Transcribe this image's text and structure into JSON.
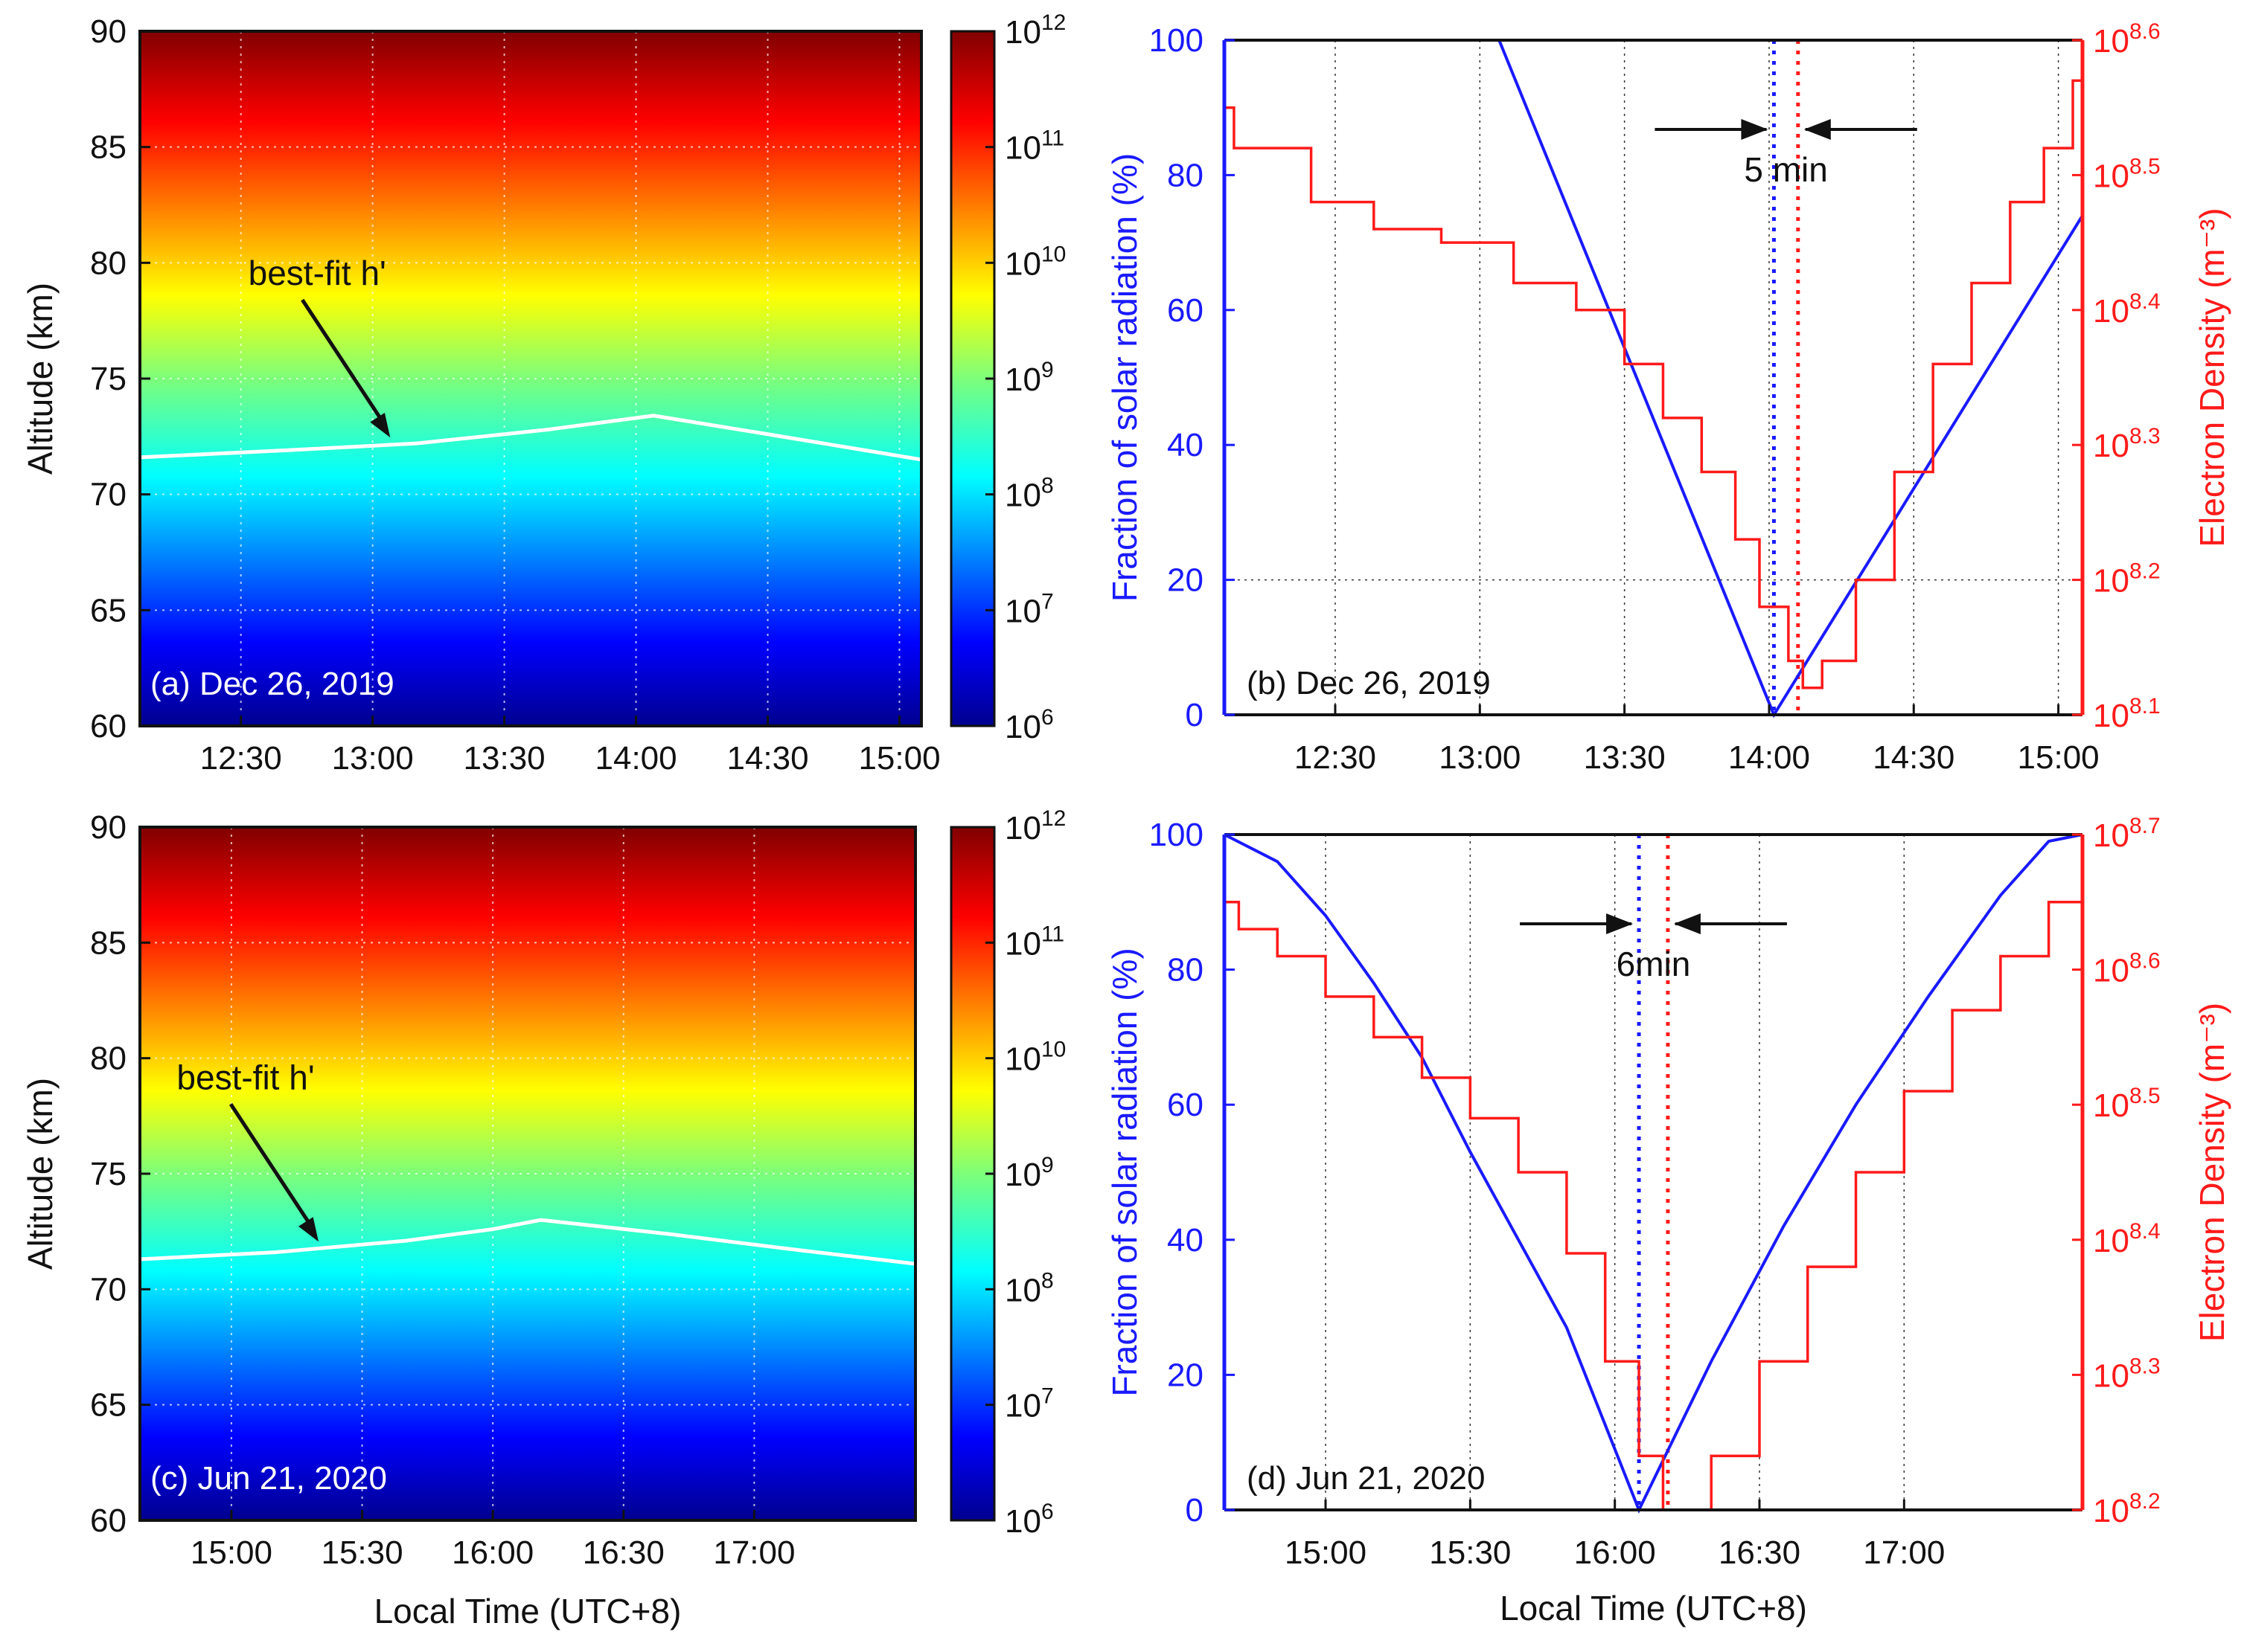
{
  "colors": {
    "frac_color": "#1a1aff",
    "density_color": "#ff1a1a",
    "frame_color": "#111111",
    "white_line": "#ffffff"
  },
  "chart_data": [
    {
      "id": "a",
      "type": "heatmap",
      "panel_label": "(a) Dec 26, 2019",
      "annotation": "best-fit h'",
      "xlabel": "",
      "ylabel": "Altitude (km)",
      "x_ticks": [
        "12:30",
        "13:00",
        "13:30",
        "14:00",
        "14:30",
        "15:00"
      ],
      "x_tick_minutes": [
        750,
        780,
        810,
        840,
        870,
        900
      ],
      "xlim_minutes": [
        727,
        905
      ],
      "ylim": [
        60,
        90
      ],
      "y_ticks": [
        "60",
        "65",
        "70",
        "75",
        "80",
        "85",
        "90"
      ],
      "y_tick_values": [
        60,
        65,
        70,
        75,
        80,
        85,
        90
      ],
      "colorbar": {
        "base": "10",
        "exponents": [
          "6",
          "7",
          "8",
          "9",
          "10",
          "11",
          "12"
        ],
        "log_range": [
          6,
          12
        ]
      },
      "best_fit_h": {
        "x_minutes": [
          727,
          760,
          790,
          820,
          844,
          870,
          905
        ],
        "altitude_km": [
          71.6,
          71.9,
          72.2,
          72.8,
          73.4,
          72.6,
          71.5
        ]
      },
      "annotation_arrow_target": {
        "x_minutes": 784,
        "altitude_km": 72.2
      },
      "grid": true
    },
    {
      "id": "b",
      "type": "line",
      "panel_label": "(b) Dec 26, 2019",
      "xlabel": "",
      "ylabel_left": "Fraction of solar radiation (%)",
      "ylabel_right": "Electron Density (m⁻³)",
      "x_ticks": [
        "12:30",
        "13:00",
        "13:30",
        "14:00",
        "14:30",
        "15:00"
      ],
      "x_tick_minutes": [
        750,
        780,
        810,
        840,
        870,
        900
      ],
      "xlim_minutes": [
        727,
        905
      ],
      "ylim_left": [
        0,
        100
      ],
      "y_ticks_left": [
        "0",
        "20",
        "40",
        "60",
        "80",
        "100"
      ],
      "y_tick_values_left": [
        0,
        20,
        40,
        60,
        80,
        100
      ],
      "y_right_base": "10",
      "y_right_exponents": [
        "8.1",
        "8.2",
        "8.3",
        "8.4",
        "8.5",
        "8.6"
      ],
      "ylim_right_log": [
        8.1,
        8.6
      ],
      "annotation": "5 min",
      "annotation_times_minutes": [
        841,
        846
      ],
      "series": [
        {
          "name": "",
          "axis": "left",
          "x_minutes": [
            727,
            784,
            841,
            905
          ],
          "values": [
            100,
            100,
            0,
            74
          ]
        },
        {
          "name": "",
          "axis": "right",
          "x_minutes": [
            727,
            729,
            745,
            758,
            772,
            787,
            800,
            810,
            818,
            826,
            833,
            838,
            844,
            847,
            851,
            858,
            866,
            874,
            882,
            890,
            897,
            903,
            905
          ],
          "values": [
            8.55,
            8.52,
            8.48,
            8.46,
            8.45,
            8.42,
            8.4,
            8.36,
            8.32,
            8.28,
            8.23,
            8.18,
            8.14,
            8.12,
            8.14,
            8.2,
            8.28,
            8.36,
            8.42,
            8.48,
            8.52,
            8.57,
            8.59
          ]
        }
      ],
      "hline_left": 20,
      "grid": true
    },
    {
      "id": "c",
      "type": "heatmap",
      "panel_label": "(c) Jun 21, 2020",
      "annotation": "best-fit h'",
      "xlabel": "Local Time (UTC+8)",
      "ylabel": "Altitude (km)",
      "x_ticks": [
        "15:00",
        "15:30",
        "16:00",
        "16:30",
        "17:00"
      ],
      "x_tick_minutes": [
        900,
        930,
        960,
        990,
        1020
      ],
      "xlim_minutes": [
        879,
        1057
      ],
      "ylim": [
        60,
        90
      ],
      "y_ticks": [
        "60",
        "65",
        "70",
        "75",
        "80",
        "85",
        "90"
      ],
      "y_tick_values": [
        60,
        65,
        70,
        75,
        80,
        85,
        90
      ],
      "colorbar": {
        "base": "10",
        "exponents": [
          "6",
          "7",
          "8",
          "9",
          "10",
          "11",
          "12"
        ],
        "log_range": [
          6,
          12
        ]
      },
      "best_fit_h": {
        "x_minutes": [
          879,
          910,
          940,
          960,
          971,
          1000,
          1030,
          1057
        ],
        "altitude_km": [
          71.3,
          71.6,
          72.1,
          72.6,
          73.0,
          72.4,
          71.7,
          71.1
        ]
      },
      "annotation_arrow_target": {
        "x_minutes": 920,
        "altitude_km": 71.8
      },
      "grid": true
    },
    {
      "id": "d",
      "type": "line",
      "panel_label": "(d) Jun 21, 2020",
      "xlabel": "Local Time (UTC+8)",
      "ylabel_left": "Fraction of solar radiation (%)",
      "ylabel_right": "Electron Density (m⁻³)",
      "x_ticks": [
        "15:00",
        "15:30",
        "16:00",
        "16:30",
        "17:00"
      ],
      "x_tick_minutes": [
        900,
        930,
        960,
        990,
        1020
      ],
      "xlim_minutes": [
        879,
        1057
      ],
      "ylim_left": [
        0,
        100
      ],
      "y_ticks_left": [
        "0",
        "20",
        "40",
        "60",
        "80",
        "100"
      ],
      "y_tick_values_left": [
        0,
        20,
        40,
        60,
        80,
        100
      ],
      "y_right_base": "10",
      "y_right_exponents": [
        "8.2",
        "8.3",
        "8.4",
        "8.5",
        "8.6",
        "8.7"
      ],
      "ylim_right_log": [
        8.2,
        8.7
      ],
      "annotation": "6min",
      "annotation_times_minutes": [
        965,
        971
      ],
      "series": [
        {
          "name": "",
          "axis": "left",
          "x_minutes": [
            879,
            890,
            900,
            910,
            920,
            930,
            940,
            950,
            965,
            980,
            995,
            1010,
            1025,
            1040,
            1050,
            1057
          ],
          "values": [
            100,
            96,
            88,
            78,
            67,
            53,
            40,
            27,
            0,
            22,
            42,
            60,
            76,
            91,
            99,
            100
          ]
        },
        {
          "name": "",
          "axis": "right",
          "x_minutes": [
            879,
            882,
            890,
            900,
            910,
            920,
            930,
            940,
            950,
            958,
            965,
            970,
            974,
            980,
            990,
            1000,
            1010,
            1020,
            1030,
            1040,
            1050,
            1057
          ],
          "values": [
            8.65,
            8.63,
            8.61,
            8.58,
            8.55,
            8.52,
            8.49,
            8.45,
            8.39,
            8.31,
            8.24,
            8.2,
            8.2,
            8.24,
            8.31,
            8.38,
            8.45,
            8.51,
            8.57,
            8.61,
            8.65,
            8.7
          ]
        }
      ],
      "hline_left": null,
      "grid": true
    }
  ]
}
